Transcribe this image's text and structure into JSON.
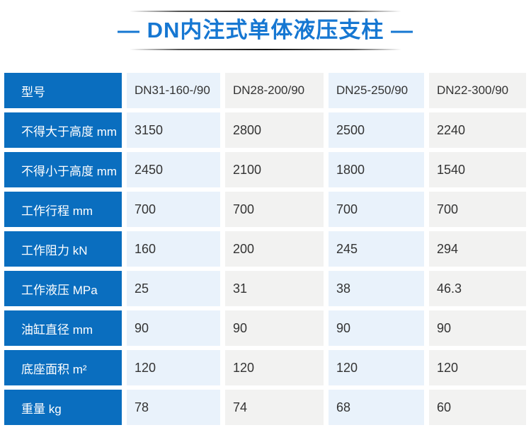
{
  "chart_data": {
    "type": "table",
    "title": "— DN内注式单体液压支柱 —",
    "header": {
      "label": "型号",
      "values": [
        "DN31-160-/90",
        "DN28-200/90",
        "DN25-250/90",
        "DN22-300/90"
      ]
    },
    "rows": [
      {
        "label": "不得大于高度 mm",
        "values": [
          "3150",
          "2800",
          "2500",
          "2240"
        ]
      },
      {
        "label": "不得小于高度 mm",
        "values": [
          "2450",
          "2100",
          "1800",
          "1540"
        ]
      },
      {
        "label": "工作行程 mm",
        "values": [
          "700",
          "700",
          "700",
          "700"
        ]
      },
      {
        "label": "工作阻力 kN",
        "values": [
          "160",
          "200",
          "245",
          "294"
        ]
      },
      {
        "label": "工作液压 MPa",
        "values": [
          "25",
          "31",
          "38",
          "46.3"
        ]
      },
      {
        "label": "油缸直径 mm",
        "values": [
          "90",
          "90",
          "90",
          "90"
        ]
      },
      {
        "label": "底座面积 m²",
        "values": [
          "120",
          "120",
          "120",
          "120"
        ]
      },
      {
        "label": "重量 kg",
        "values": [
          "78",
          "74",
          "68",
          "60"
        ]
      }
    ]
  },
  "colors": {
    "title_blue": "#1677d2",
    "label_cell_blue": "#0a6ebf",
    "column_light_blue": "#e9f2fb",
    "column_light_gray": "#f2f2f1",
    "value_text": "#333333",
    "label_text": "#ffffff"
  }
}
